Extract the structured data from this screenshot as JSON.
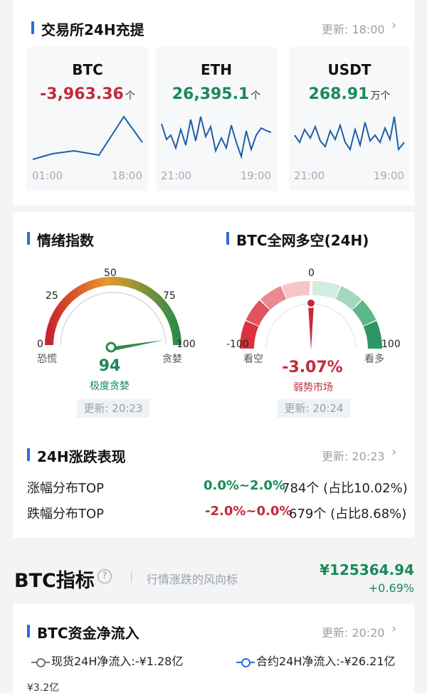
{
  "exchange": {
    "title": "交易所24H充提",
    "update": "更新: 18:00",
    "coins": [
      {
        "name": "BTC",
        "value": "-3,963.36",
        "unit": "个",
        "t_start": "01:00",
        "t_end": "18:00"
      },
      {
        "name": "ETH",
        "value": "26,395.1",
        "unit": "个",
        "t_start": "21:00",
        "t_end": "19:00"
      },
      {
        "name": "USDT",
        "value": "268.91",
        "unit": "万个",
        "t_start": "21:00",
        "t_end": "19:00"
      }
    ]
  },
  "sentiment": {
    "title": "情绪指数",
    "scale": [
      "0",
      "25",
      "50",
      "75",
      "100"
    ],
    "left_label": "恐慌",
    "right_label": "贪婪",
    "value": "94",
    "status": "极度贪婪",
    "update": "更新: 20:23"
  },
  "longshort": {
    "title": "BTC全网多空(24H)",
    "scale": [
      "-100",
      "0",
      "100"
    ],
    "left_label": "看空",
    "right_label": "看多",
    "value": "-3.07%",
    "status": "弱势市场",
    "update": "更新: 20:24"
  },
  "performance": {
    "title": "24H涨跌表现",
    "update": "更新: 20:23",
    "rows": [
      {
        "label": "涨幅分布TOP",
        "range": "0.0%~2.0%",
        "count": "784个 (占比10.02%)"
      },
      {
        "label": "跌幅分布TOP",
        "range": "-2.0%~0.0%",
        "count": "679个 (占比8.68%)"
      }
    ]
  },
  "indicator": {
    "title": "BTC指标",
    "help_icon": "question-circle-icon",
    "divider": "|",
    "subtitle": "行情涨跌的风向标",
    "price": "¥125364.94",
    "change": "+0.69%"
  },
  "netflow": {
    "title": "BTC资金净流入",
    "update": "更新: 20:20",
    "spot_legend": "现货24H净流入:-¥1.28亿",
    "contract_legend": "合约24H净流入:-¥26.21亿",
    "axis_label": "¥3.2亿"
  },
  "colors": {
    "accent": "#2b6de0",
    "up": "#1a8a57",
    "down": "#c22a3a"
  }
}
